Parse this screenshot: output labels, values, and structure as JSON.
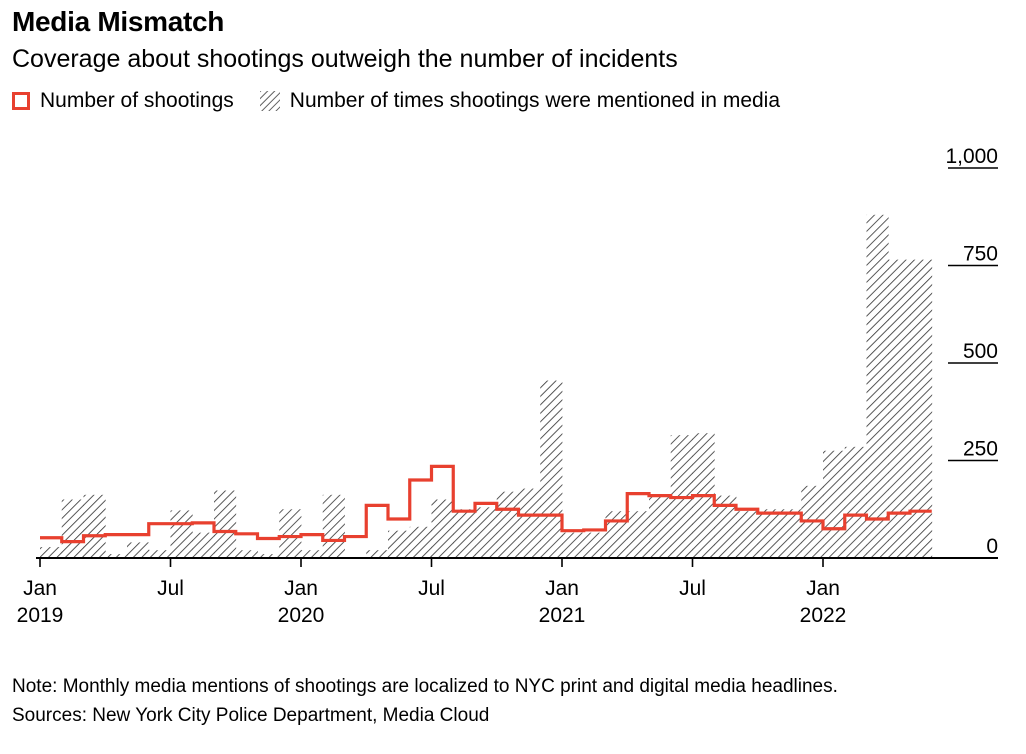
{
  "header": {
    "title": "Media Mismatch",
    "subtitle": "Coverage about shootings outweigh the number of incidents"
  },
  "legend": {
    "shootings_label": "Number of shootings",
    "mentions_label": "Number of times shootings were mentioned in media"
  },
  "footer": {
    "note": "Note: Monthly media mentions of shootings are localized to NYC print and digital media headlines.",
    "sources": "Sources: New York City Police Department, Media Cloud"
  },
  "colors": {
    "shootings_line": "#e8402f",
    "hatch": "#3a3a3a",
    "axis": "#000000"
  },
  "chart_data": {
    "type": "area",
    "title": "Media Mismatch",
    "subtitle": "Coverage about shootings outweigh the number of incidents",
    "ylim": [
      0,
      1000
    ],
    "y_ticks": [
      0,
      250,
      500,
      750,
      1000
    ],
    "y_tick_labels": [
      "0",
      "250",
      "500",
      "750",
      "1,000"
    ],
    "x_tick_labels": [
      {
        "month": "2019-01",
        "line1": "Jan",
        "line2": "2019"
      },
      {
        "month": "2019-07",
        "line1": "Jul",
        "line2": ""
      },
      {
        "month": "2020-01",
        "line1": "Jan",
        "line2": "2020"
      },
      {
        "month": "2020-07",
        "line1": "Jul",
        "line2": ""
      },
      {
        "month": "2021-01",
        "line1": "Jan",
        "line2": "2021"
      },
      {
        "month": "2021-07",
        "line1": "Jul",
        "line2": ""
      },
      {
        "month": "2022-01",
        "line1": "Jan",
        "line2": "2022"
      }
    ],
    "x": [
      "2019-01",
      "2019-02",
      "2019-03",
      "2019-04",
      "2019-05",
      "2019-06",
      "2019-07",
      "2019-08",
      "2019-09",
      "2019-10",
      "2019-11",
      "2019-12",
      "2020-01",
      "2020-02",
      "2020-03",
      "2020-04",
      "2020-05",
      "2020-06",
      "2020-07",
      "2020-08",
      "2020-09",
      "2020-10",
      "2020-11",
      "2020-12",
      "2021-01",
      "2021-02",
      "2021-03",
      "2021-04",
      "2021-05",
      "2021-06",
      "2021-07",
      "2021-08",
      "2021-09",
      "2021-10",
      "2021-11",
      "2021-12",
      "2022-01",
      "2022-02",
      "2022-03",
      "2022-04",
      "2022-05"
    ],
    "series": [
      {
        "name": "Number of shootings",
        "style": "step-line",
        "values": [
          52,
          42,
          57,
          60,
          60,
          88,
          88,
          90,
          68,
          62,
          50,
          55,
          60,
          45,
          55,
          135,
          100,
          200,
          235,
          120,
          140,
          125,
          110,
          110,
          70,
          72,
          95,
          165,
          160,
          155,
          160,
          135,
          125,
          115,
          115,
          95,
          75,
          110,
          100,
          115,
          120
        ]
      },
      {
        "name": "Number of times shootings were mentioned in media",
        "style": "hatched-step-area",
        "values": [
          28,
          150,
          162,
          10,
          40,
          20,
          122,
          65,
          173,
          20,
          10,
          125,
          20,
          162,
          0,
          20,
          70,
          80,
          150,
          125,
          130,
          170,
          178,
          455,
          65,
          65,
          120,
          120,
          160,
          315,
          320,
          160,
          120,
          125,
          125,
          185,
          275,
          285,
          880,
          765,
          765
        ]
      }
    ]
  }
}
